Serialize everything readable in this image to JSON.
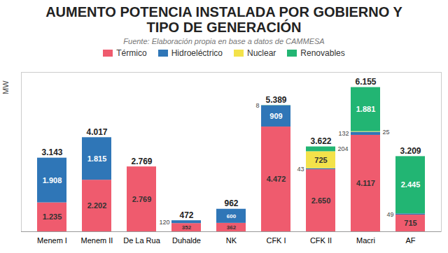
{
  "chart_data": {
    "type": "bar",
    "title": "AUMENTO POTENCIA INSTALADA POR GOBIERNO Y TIPO DE GENERACIÓN",
    "subtitle": "Fuente: Elaboración propia en base a datos de CAMMESA",
    "y_label": "MW",
    "categories": [
      "Menem I",
      "Menem II",
      "De La Rua",
      "Duhalde",
      "NK",
      "CFK I",
      "CFK II",
      "Macri",
      "AF"
    ],
    "series": [
      {
        "name": "Térmico",
        "color": "#ef5b6e",
        "values": [
          1235,
          2202,
          2769,
          352,
          362,
          4472,
          2650,
          4117,
          715
        ],
        "value_labels": [
          "1.235",
          "2.202",
          "2.769",
          "352",
          "362",
          "4.472",
          "2.650",
          "4.117",
          "715"
        ]
      },
      {
        "name": "Hidroeléctrico",
        "color": "#2f76b7",
        "values": [
          1908,
          1815,
          null,
          120,
          600,
          909,
          43,
          132,
          49
        ],
        "value_labels": [
          "1.908",
          "1.815",
          null,
          "120",
          "600",
          "909",
          "43",
          "132",
          "49"
        ]
      },
      {
        "name": "Nuclear",
        "color": "#f3e24a",
        "values": [
          null,
          null,
          null,
          null,
          null,
          null,
          725,
          25,
          null
        ],
        "value_labels": [
          null,
          null,
          null,
          null,
          null,
          null,
          "725",
          "25",
          null
        ]
      },
      {
        "name": "Renovables",
        "color": "#22b573",
        "values": [
          null,
          null,
          null,
          null,
          null,
          8,
          204,
          1881,
          2445
        ],
        "value_labels": [
          null,
          null,
          null,
          null,
          null,
          "8",
          "204",
          "1.881",
          "2.445"
        ]
      }
    ],
    "totals": [
      3143,
      4017,
      2769,
      472,
      962,
      5389,
      3622,
      6155,
      3209
    ],
    "total_labels": [
      "3.143",
      "4.017",
      "2.769",
      "472",
      "962",
      "5.389",
      "3.622",
      "6.155",
      "3.209"
    ],
    "stacked": true,
    "data_labels": true,
    "legend": "top",
    "ylim": [
      0,
      6800
    ],
    "yticks": [],
    "tick_labels": "x",
    "grid": false
  }
}
